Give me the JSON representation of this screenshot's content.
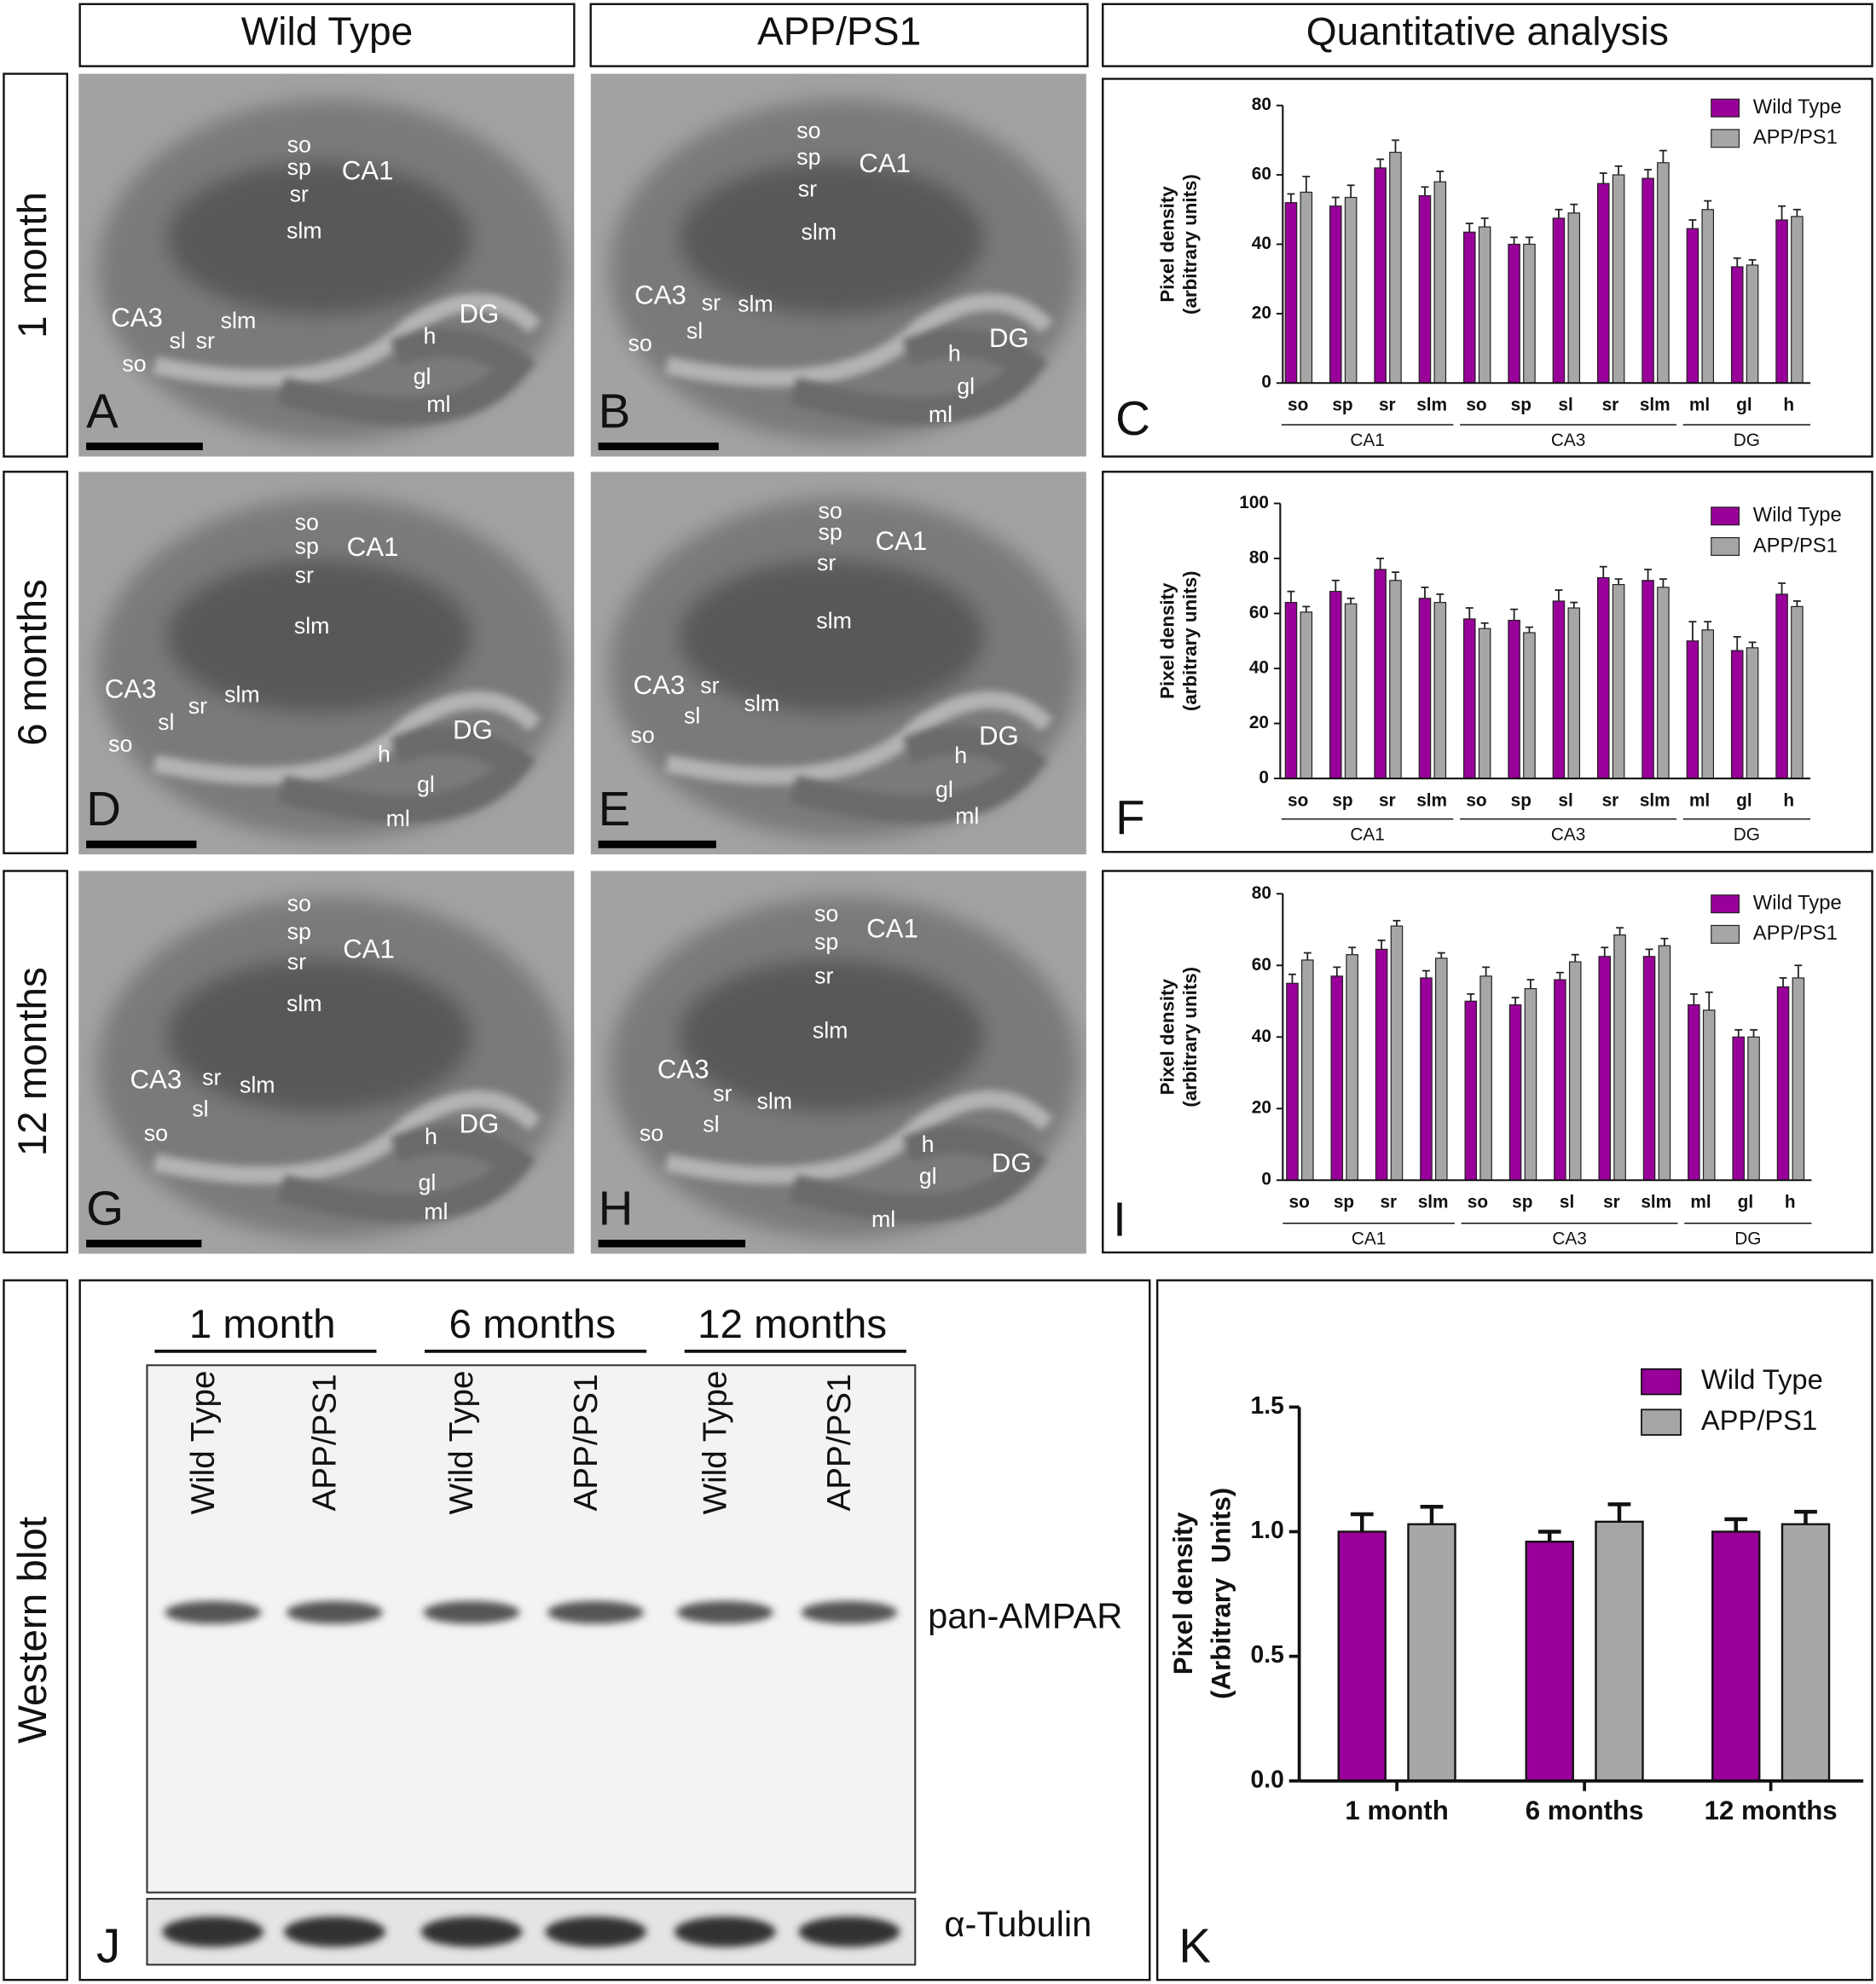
{
  "headers": [
    "Wild Type",
    "APP/PS1",
    "Quantitative analysis"
  ],
  "rows": [
    "1 month",
    "6 months",
    "12 months"
  ],
  "micrographs": [
    {
      "letter": "A",
      "labels": [
        "so",
        "sp",
        "sr",
        "CA1",
        "slm",
        "CA3",
        "slm",
        "sl",
        "sr",
        "so",
        "DG",
        "h",
        "gl",
        "ml"
      ]
    },
    {
      "letter": "B",
      "labels": [
        "so",
        "sp",
        "CA1",
        "sr",
        "slm",
        "CA3",
        "sr",
        "slm",
        "sl",
        "so",
        "DG",
        "h",
        "gl",
        "ml"
      ]
    },
    {
      "letter": "D",
      "labels": [
        "so",
        "sp",
        "CA1",
        "sr",
        "slm",
        "CA3",
        "slm",
        "sr",
        "sl",
        "so",
        "DG",
        "h",
        "gl",
        "ml"
      ]
    },
    {
      "letter": "E",
      "labels": [
        "so",
        "sp",
        "CA1",
        "sr",
        "slm",
        "CA3",
        "sr",
        "sl",
        "slm",
        "so",
        "DG",
        "h",
        "gl",
        "ml"
      ]
    },
    {
      "letter": "G",
      "labels": [
        "so",
        "sp",
        "CA1",
        "sr",
        "slm",
        "CA3",
        "sr",
        "slm",
        "sl",
        "so",
        "DG",
        "h",
        "gl",
        "ml"
      ]
    },
    {
      "letter": "H",
      "labels": [
        "so",
        "sp",
        "CA1",
        "sr",
        "slm",
        "CA3",
        "sr",
        "slm",
        "sl",
        "so",
        "DG",
        "h",
        "gl",
        "ml"
      ]
    }
  ],
  "western_blot": {
    "label": "Western blot",
    "panel": "J",
    "groups": [
      "1 month",
      "6 months",
      "12 months"
    ],
    "lanes": [
      "Wild Type",
      "APP/PS1",
      "Wild Type",
      "APP/PS1",
      "Wild Type",
      "APP/PS1"
    ],
    "bands": [
      "pan-AMPAR",
      "α-Tubulin"
    ]
  },
  "chart_data": [
    {
      "type": "grouped_bar",
      "panel": "C",
      "y_label": [
        "Pixel density",
        "(arbitrary units)"
      ],
      "groups": [
        {
          "name": "CA1",
          "categories": [
            "so",
            "sp",
            "sr",
            "slm"
          ]
        },
        {
          "name": "CA3",
          "categories": [
            "so",
            "sp",
            "sl",
            "sr",
            "slm"
          ]
        },
        {
          "name": "DG",
          "categories": [
            "ml",
            "gl",
            "h"
          ]
        }
      ],
      "ylim": [
        0,
        80
      ],
      "yticks": [
        0,
        20,
        40,
        60,
        80
      ],
      "legend": "upper right",
      "series": [
        {
          "name": "Wild Type",
          "color": "#990099",
          "values": [
            52,
            51,
            62,
            54,
            43.5,
            40,
            47.5,
            57.5,
            59,
            44.5,
            33.5,
            47
          ],
          "errors": [
            2.5,
            2.5,
            2.5,
            2.5,
            2.5,
            2,
            2.5,
            3,
            2.5,
            2.5,
            2.5,
            4
          ]
        },
        {
          "name": "APP/PS1",
          "color": "#a6a6a6",
          "values": [
            55,
            53.5,
            66.5,
            58,
            45,
            40,
            49,
            60,
            63.5,
            50,
            34,
            48
          ],
          "errors": [
            4.5,
            3.5,
            3.5,
            3,
            2.5,
            2,
            2.5,
            2.5,
            3.5,
            2.5,
            1.5,
            2
          ]
        }
      ]
    },
    {
      "type": "grouped_bar",
      "panel": "F",
      "y_label": [
        "Pixel density",
        "(arbitrary units)"
      ],
      "groups": [
        {
          "name": "CA1",
          "categories": [
            "so",
            "sp",
            "sr",
            "slm"
          ]
        },
        {
          "name": "CA3",
          "categories": [
            "so",
            "sp",
            "sl",
            "sr",
            "slm"
          ]
        },
        {
          "name": "DG",
          "categories": [
            "ml",
            "gl",
            "h"
          ]
        }
      ],
      "ylim": [
        0,
        100
      ],
      "yticks": [
        0,
        20,
        40,
        60,
        80,
        100
      ],
      "legend": "upper right",
      "series": [
        {
          "name": "Wild Type",
          "color": "#990099",
          "values": [
            64,
            68,
            76,
            65.5,
            58,
            57.5,
            64.5,
            73,
            72,
            50,
            46.5,
            67
          ],
          "errors": [
            4,
            4,
            4,
            4,
            4,
            4,
            4,
            4,
            4,
            7,
            5,
            4
          ]
        },
        {
          "name": "APP/PS1",
          "color": "#a6a6a6",
          "values": [
            60.5,
            63.5,
            72,
            64,
            54.5,
            53,
            62,
            70.5,
            69.5,
            54,
            47.5,
            62.5
          ],
          "errors": [
            2,
            2,
            3,
            3,
            2,
            2,
            2,
            2,
            3,
            3,
            2,
            2
          ]
        }
      ]
    },
    {
      "type": "grouped_bar",
      "panel": "I",
      "y_label": [
        "Pixel density",
        "(arbitrary units)"
      ],
      "groups": [
        {
          "name": "CA1",
          "categories": [
            "so",
            "sp",
            "sr",
            "slm"
          ]
        },
        {
          "name": "CA3",
          "categories": [
            "so",
            "sp",
            "sl",
            "sr",
            "slm"
          ]
        },
        {
          "name": "DG",
          "categories": [
            "ml",
            "gl",
            "h"
          ]
        }
      ],
      "ylim": [
        0,
        80
      ],
      "yticks": [
        0,
        20,
        40,
        60,
        80
      ],
      "legend": "upper right",
      "series": [
        {
          "name": "Wild Type",
          "color": "#990099",
          "values": [
            55,
            57,
            64.5,
            56.5,
            50,
            49,
            56,
            62.5,
            62.5,
            49,
            40,
            54
          ],
          "errors": [
            2.5,
            2.5,
            2.5,
            2,
            2,
            2,
            2,
            2.5,
            2,
            3,
            2,
            2.5
          ]
        },
        {
          "name": "APP/PS1",
          "color": "#a6a6a6",
          "values": [
            61.5,
            63,
            71,
            62,
            57,
            53.5,
            61,
            68.5,
            65.5,
            47.5,
            40,
            56.5
          ],
          "errors": [
            2,
            2,
            1.5,
            1.5,
            2.5,
            2.5,
            2,
            2,
            2,
            5,
            2,
            3.5
          ]
        }
      ]
    },
    {
      "type": "bar",
      "panel": "K",
      "y_label": [
        "Pixel density",
        "(Arbitrary  Units)"
      ],
      "categories": [
        "1 month",
        "6 months",
        "12 months"
      ],
      "ylim": [
        0,
        1.5
      ],
      "yticks": [
        {
          "value": 0,
          "label": "0.0"
        },
        {
          "value": 0.5,
          "label": "0.5"
        },
        {
          "value": 1,
          "label": "1.0"
        },
        {
          "value": 1.5,
          "label": "1.5"
        }
      ],
      "legend": "upper right",
      "series": [
        {
          "name": "Wild Type",
          "color": "#990099",
          "values": [
            1.0,
            0.96,
            1.0
          ],
          "errors": [
            0.07,
            0.04,
            0.05
          ]
        },
        {
          "name": "APP/PS1",
          "color": "#a6a6a6",
          "values": [
            1.03,
            1.04,
            1.03
          ],
          "errors": [
            0.07,
            0.07,
            0.05
          ]
        }
      ]
    }
  ]
}
